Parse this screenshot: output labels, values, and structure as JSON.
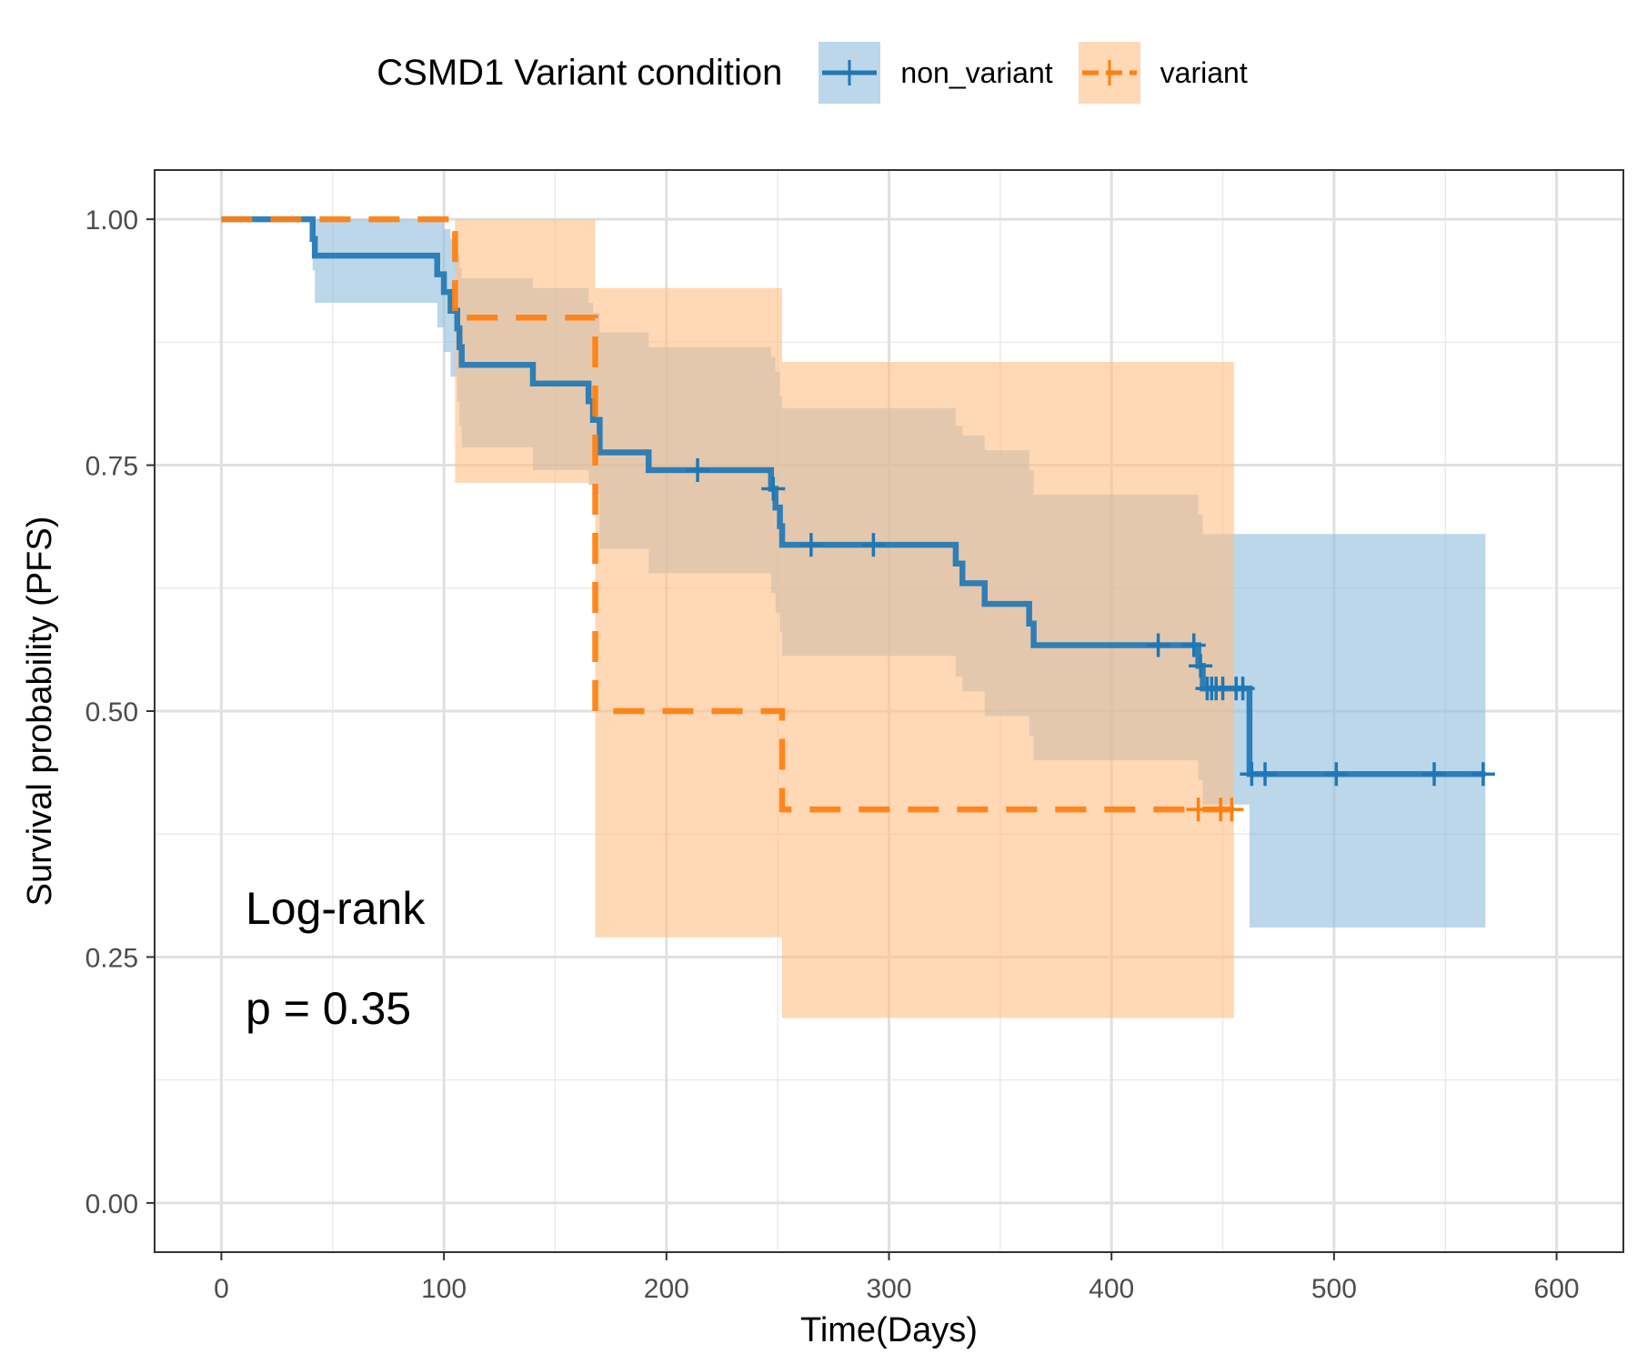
{
  "chart_data": {
    "type": "line",
    "subtype": "kaplan-meier step curve with confidence bands",
    "xlabel": "Time(Days)",
    "ylabel": "Survival probability (PFS)",
    "xlim": [
      -30,
      630
    ],
    "ylim": [
      -0.05,
      1.05
    ],
    "xticks": [
      "0",
      "100",
      "200",
      "300",
      "400",
      "500",
      "600"
    ],
    "xtick_values": [
      0,
      100,
      200,
      300,
      400,
      500,
      600
    ],
    "yticks": [
      "0.00",
      "0.25",
      "0.50",
      "0.75",
      "1.00"
    ],
    "ytick_values": [
      0,
      0.25,
      0.5,
      0.75,
      1.0
    ],
    "grid": true,
    "legend": {
      "title": "CSMD1 Variant condition",
      "position": "top",
      "entries": [
        "non_variant",
        "variant"
      ]
    },
    "annotations": [
      "Log-rank",
      "p = 0.35"
    ],
    "series": [
      {
        "name": "non_variant",
        "color": "#1f77b4",
        "band_color": "#8fbcdc",
        "line_style": "solid",
        "steps": [
          [
            0,
            1.0
          ],
          [
            41,
            0.98
          ],
          [
            42,
            0.963
          ],
          [
            97,
            0.944
          ],
          [
            100,
            0.926
          ],
          [
            103,
            0.907
          ],
          [
            106,
            0.889
          ],
          [
            107,
            0.87
          ],
          [
            108,
            0.852
          ],
          [
            140,
            0.833
          ],
          [
            165,
            0.815
          ],
          [
            167,
            0.796
          ],
          [
            170,
            0.763
          ],
          [
            192,
            0.745
          ],
          [
            247,
            0.726
          ],
          [
            249,
            0.707
          ],
          [
            251,
            0.688
          ],
          [
            252,
            0.669
          ],
          [
            330,
            0.65
          ],
          [
            333,
            0.63
          ],
          [
            343,
            0.609
          ],
          [
            363,
            0.589
          ],
          [
            365,
            0.567
          ],
          [
            439,
            0.546
          ],
          [
            441,
            0.523
          ],
          [
            462,
            0.436
          ]
        ],
        "end_x": 568,
        "band": [
          [
            0,
            1.0,
            1.0
          ],
          [
            41,
            1.0,
            0.948
          ],
          [
            42,
            1.0,
            0.915
          ],
          [
            97,
            1.0,
            0.89
          ],
          [
            100,
            0.99,
            0.865
          ],
          [
            103,
            0.98,
            0.84
          ],
          [
            106,
            0.965,
            0.815
          ],
          [
            107,
            0.95,
            0.79
          ],
          [
            108,
            0.94,
            0.768
          ],
          [
            140,
            0.93,
            0.745
          ],
          [
            165,
            0.915,
            0.73
          ],
          [
            167,
            0.905,
            0.72
          ],
          [
            170,
            0.885,
            0.665
          ],
          [
            192,
            0.87,
            0.64
          ],
          [
            247,
            0.86,
            0.62
          ],
          [
            249,
            0.845,
            0.6
          ],
          [
            251,
            0.82,
            0.58
          ],
          [
            252,
            0.808,
            0.556
          ],
          [
            330,
            0.79,
            0.535
          ],
          [
            333,
            0.78,
            0.52
          ],
          [
            343,
            0.765,
            0.495
          ],
          [
            363,
            0.745,
            0.475
          ],
          [
            365,
            0.72,
            0.45
          ],
          [
            439,
            0.7,
            0.43
          ],
          [
            441,
            0.68,
            0.405
          ],
          [
            462,
            0.68,
            0.28
          ]
        ],
        "censor_times": [
          214,
          248,
          265,
          293,
          421,
          437,
          440,
          443,
          445,
          447,
          450,
          456,
          459,
          463,
          469,
          501,
          545,
          567
        ]
      },
      {
        "name": "variant",
        "color": "#ff7f0e",
        "band_color": "#ffbe86",
        "line_style": "dashed",
        "steps": [
          [
            0,
            1.0
          ],
          [
            105,
            0.9
          ],
          [
            168,
            0.5
          ],
          [
            252,
            0.4
          ]
        ],
        "end_x": 455,
        "band": [
          [
            0,
            1.0,
            1.0
          ],
          [
            105,
            1.0,
            0.732
          ],
          [
            168,
            0.93,
            0.27
          ],
          [
            252,
            0.855,
            0.188
          ]
        ],
        "censor_times": [
          439,
          449,
          454
        ]
      }
    ]
  }
}
